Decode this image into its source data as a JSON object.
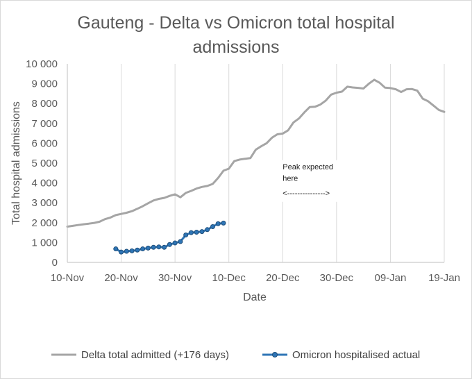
{
  "chart_data": {
    "type": "line",
    "title_line1": "Gauteng - Delta vs Omicron total hospital",
    "title_line2": "admissions",
    "xlabel": "Date",
    "ylabel": "Total hospital admissions",
    "x_range_days": [
      0,
      70
    ],
    "ylim": [
      0,
      10000
    ],
    "y_ticks": [
      0,
      1000,
      2000,
      3000,
      4000,
      5000,
      6000,
      7000,
      8000,
      9000,
      10000
    ],
    "y_tick_labels": [
      "0",
      "1 000",
      "2 000",
      "3 000",
      "4 000",
      "5 000",
      "6 000",
      "7 000",
      "8 000",
      "9 000",
      "10 000"
    ],
    "x_ticks": [
      0,
      10,
      20,
      30,
      40,
      50,
      60,
      70
    ],
    "x_tick_labels": [
      "10-Nov",
      "20-Nov",
      "30-Nov",
      "10-Dec",
      "20-Dec",
      "30-Dec",
      "09-Jan",
      "19-Jan"
    ],
    "grid": "vertical",
    "legend_position": "bottom",
    "series": [
      {
        "name": "Delta total admitted (+176 days)",
        "color": "#a5a5a5",
        "markers": false,
        "x": [
          0,
          1,
          2,
          3,
          4,
          5,
          6,
          7,
          8,
          9,
          10,
          11,
          12,
          13,
          14,
          15,
          16,
          17,
          18,
          19,
          20,
          21,
          22,
          23,
          24,
          25,
          26,
          27,
          28,
          29,
          30,
          31,
          32,
          33,
          34,
          35,
          36,
          37,
          38,
          39,
          40,
          41,
          42,
          43,
          44,
          45,
          46,
          47,
          48,
          49,
          50,
          51,
          52,
          53,
          54,
          55,
          56,
          57,
          58,
          59,
          60,
          61,
          62,
          63,
          64,
          65,
          66,
          67,
          68,
          69,
          70
        ],
        "y": [
          1800,
          1840,
          1880,
          1920,
          1950,
          1990,
          2050,
          2180,
          2260,
          2380,
          2440,
          2500,
          2580,
          2700,
          2830,
          2980,
          3120,
          3200,
          3250,
          3350,
          3430,
          3280,
          3500,
          3600,
          3720,
          3800,
          3850,
          3950,
          4250,
          4620,
          4720,
          5100,
          5180,
          5220,
          5250,
          5680,
          5850,
          6000,
          6280,
          6450,
          6490,
          6650,
          7050,
          7250,
          7550,
          7820,
          7840,
          7950,
          8150,
          8450,
          8550,
          8600,
          8850,
          8810,
          8790,
          8760,
          9000,
          9200,
          9050,
          8800,
          8780,
          8720,
          8580,
          8720,
          8730,
          8650,
          8250,
          8120,
          7900,
          7680,
          7580
        ]
      },
      {
        "name": "Omicron hospitalised actual",
        "color": "#2e75b6",
        "markers": true,
        "x": [
          9,
          10,
          11,
          12,
          13,
          14,
          15,
          16,
          17,
          18,
          19,
          20,
          21,
          22,
          23,
          24,
          25,
          26,
          27,
          28,
          29
        ],
        "y": [
          680,
          520,
          560,
          580,
          620,
          680,
          720,
          760,
          780,
          760,
          900,
          980,
          1050,
          1380,
          1500,
          1520,
          1550,
          1650,
          1800,
          1950,
          1980
        ]
      }
    ],
    "annotations": [
      {
        "text": "Peak expected",
        "x_day": 40,
        "y": 4680
      },
      {
        "text": "here",
        "x_day": 40,
        "y": 4100
      },
      {
        "text": "<--------------->",
        "x_day": 40,
        "y": 3350
      }
    ]
  }
}
